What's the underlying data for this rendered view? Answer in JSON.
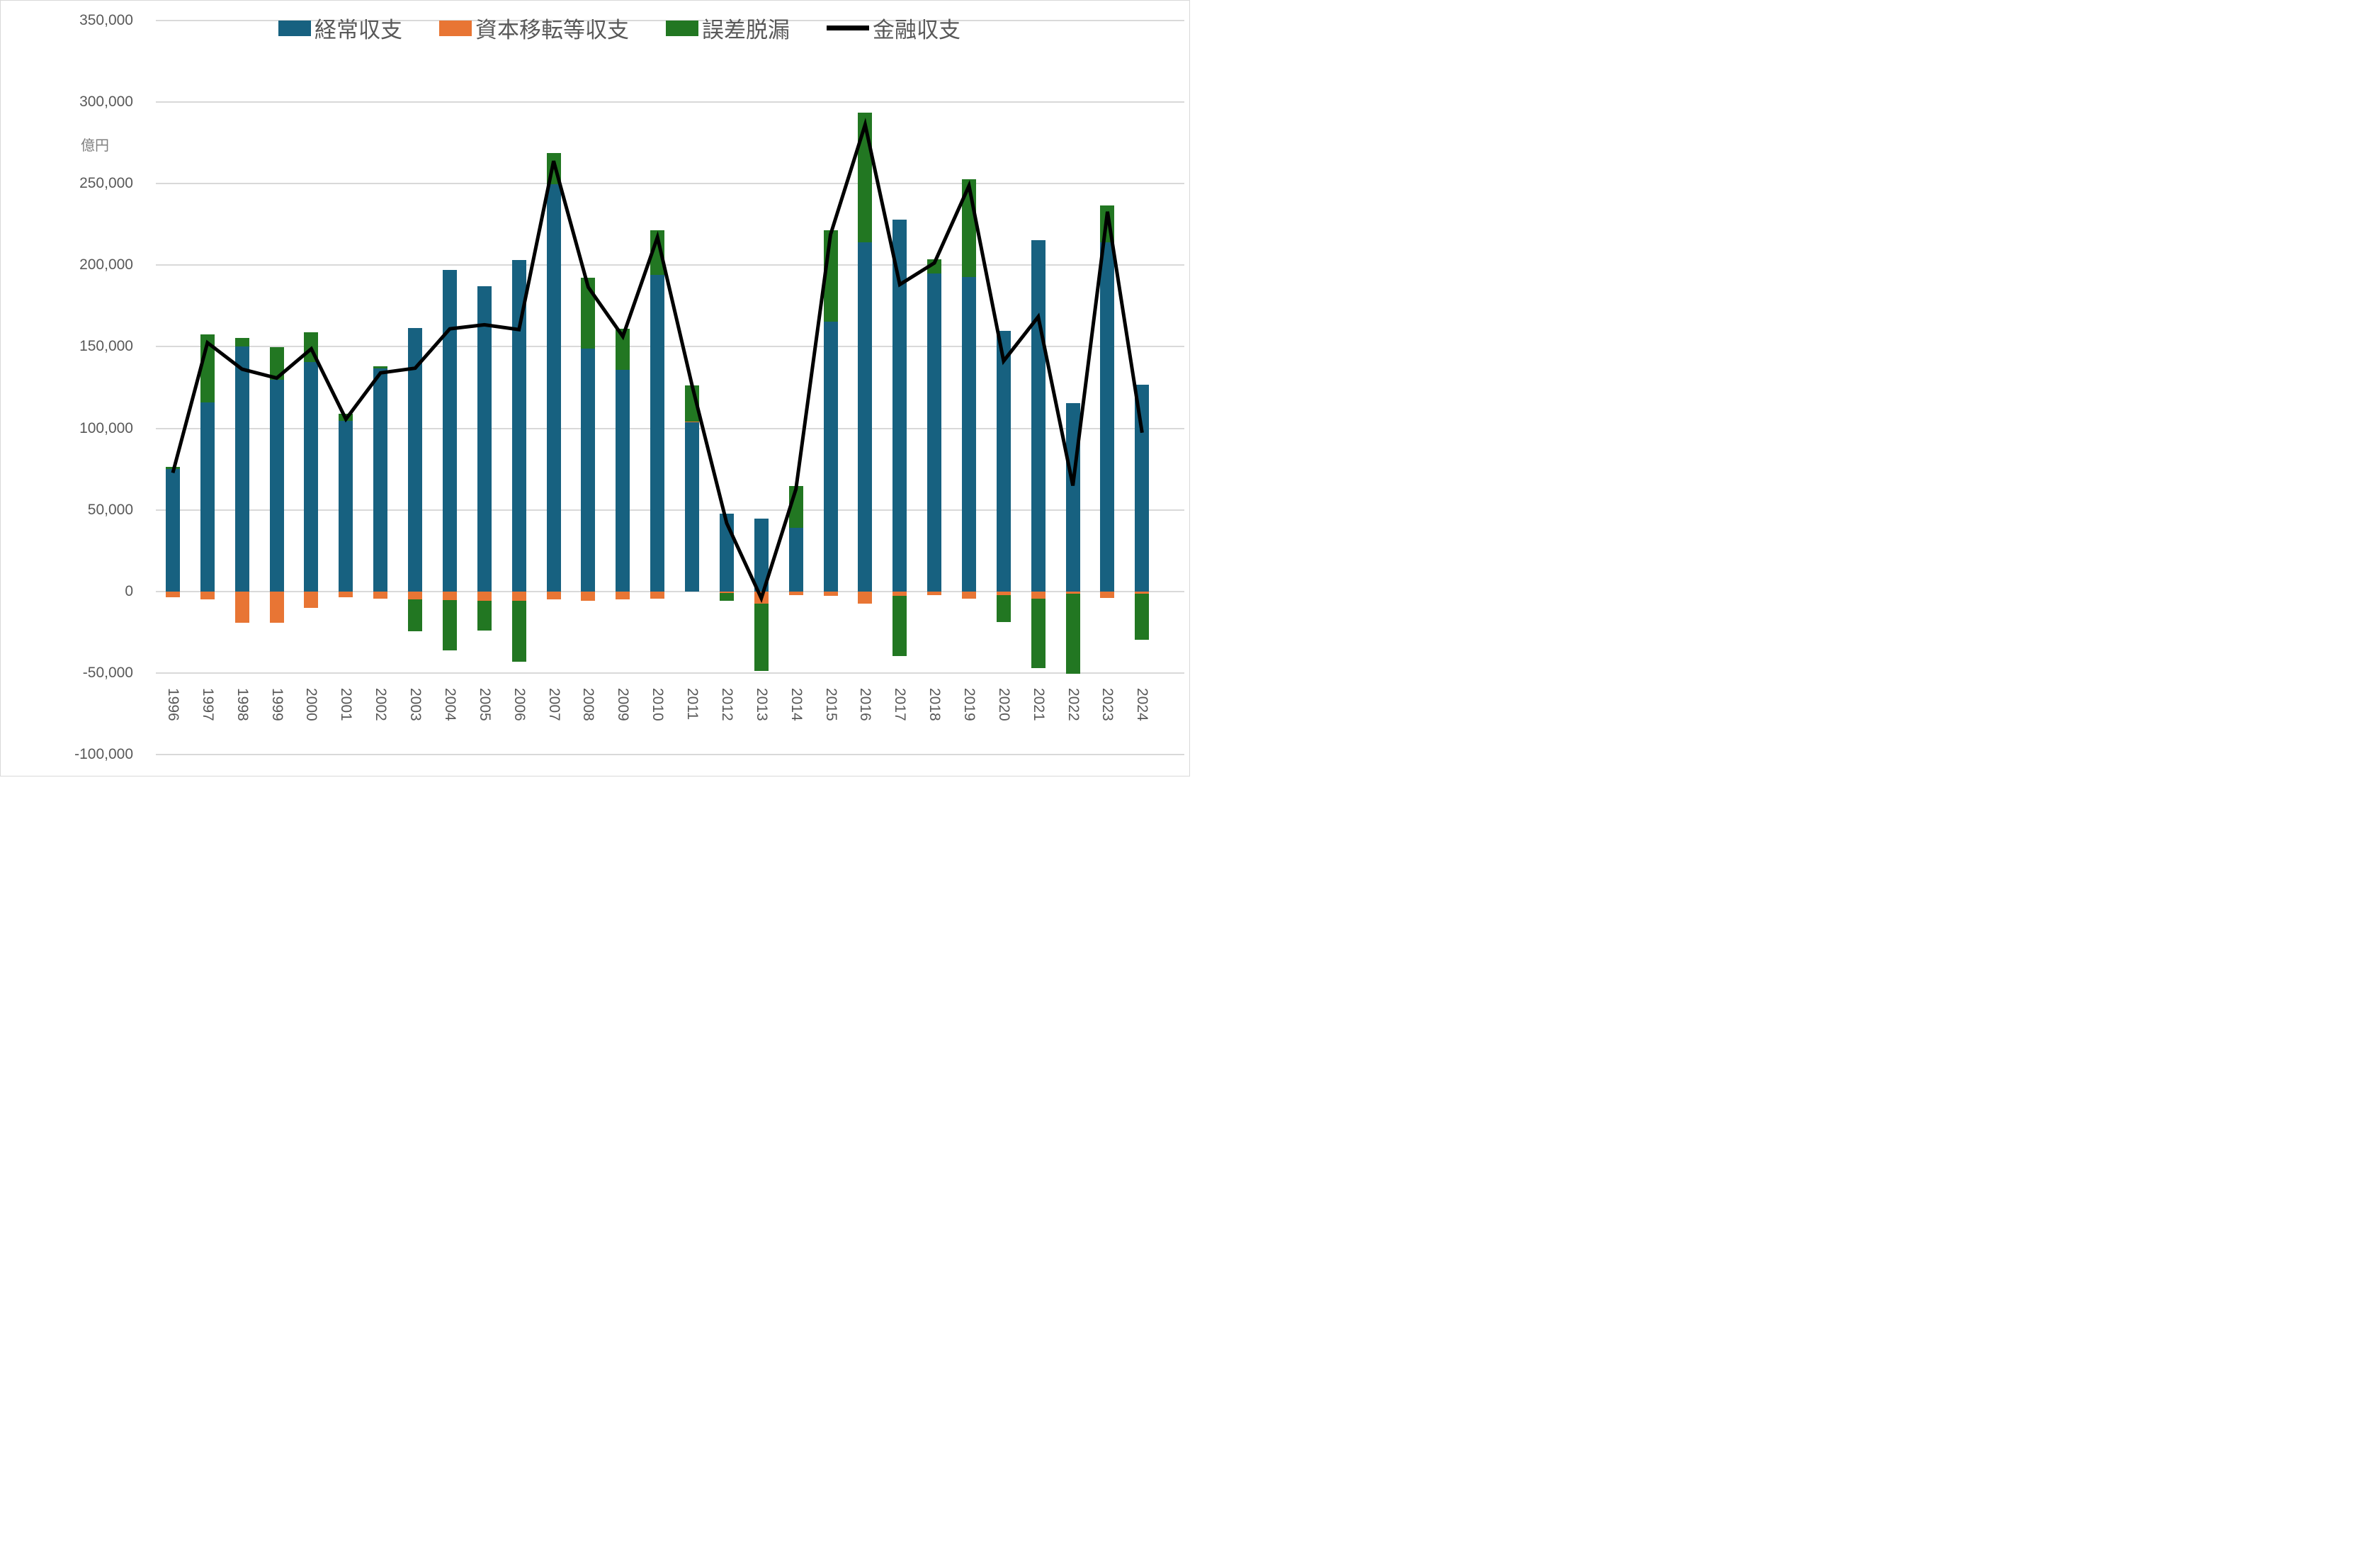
{
  "unit_label": "億円",
  "chart_data": {
    "type": "bar",
    "subtype": "stacked-bars-with-line-overlay",
    "title": "",
    "xlabel": "",
    "ylabel": "億円",
    "ylim": [
      -100000,
      350000
    ],
    "ytick_step": 50000,
    "grid": "horizontal",
    "legend_position": "top-center",
    "categories": [
      "1996",
      "1997",
      "1998",
      "1999",
      "2000",
      "2001",
      "2002",
      "2003",
      "2004",
      "2005",
      "2006",
      "2007",
      "2008",
      "2009",
      "2010",
      "2011",
      "2012",
      "2013",
      "2014",
      "2015",
      "2016",
      "2017",
      "2018",
      "2019",
      "2020",
      "2021",
      "2022",
      "2023",
      "2024"
    ],
    "series": [
      {
        "name": "経常収支",
        "type": "bar",
        "color": "#176180",
        "values": [
          74943,
          115700,
          149981,
          129734,
          140616,
          104524,
          136837,
          161254,
          196941,
          187277,
          203307,
          249490,
          148786,
          135925,
          193828,
          104013,
          47640,
          44566,
          39215,
          165194,
          213910,
          227779,
          195047,
          192513,
          159917,
          215363,
          115466,
          213810,
          126817
        ]
      },
      {
        "name": "資本移転等収支",
        "type": "bar",
        "color": "#e87534",
        "values": [
          -3537,
          -4879,
          -19313,
          -19088,
          -9947,
          -3462,
          -4217,
          -4672,
          -5134,
          -5490,
          -5533,
          -4731,
          -5583,
          -4653,
          -4341,
          282,
          -804,
          -7436,
          -2089,
          -2714,
          -7433,
          -2800,
          -2105,
          -4131,
          -2072,
          -4232,
          -1144,
          -4001,
          -1171
        ]
      },
      {
        "name": "誤差脱漏",
        "type": "bar",
        "color": "#227722",
        "values": [
          1317,
          41645,
          5558,
          20184,
          18088,
          4567,
          1348,
          -19722,
          -30879,
          -18343,
          -37280,
          19016,
          43299,
          25020,
          27612,
          21998,
          -4911,
          -41217,
          25656,
          56283,
          79583,
          -36866,
          8419,
          60242,
          -16594,
          -42755,
          -49400,
          22912,
          -28345
        ]
      },
      {
        "name": "金融収支",
        "type": "line",
        "color": "#000000",
        "values": [
          72723,
          152467,
          136226,
          130830,
          148757,
          105629,
          133968,
          136860,
          160928,
          163444,
          160494,
          263775,
          186502,
          156292,
          217099,
          126294,
          41925,
          -4087,
          62782,
          218764,
          286059,
          188113,
          201361,
          248624,
          141251,
          168376,
          64922,
          232721,
          97301
        ]
      }
    ],
    "colors": {
      "gridline": "#d9d9d9",
      "tick_text": "#595959",
      "unit_text": "#7f7f7f",
      "background": "#ffffff"
    }
  }
}
